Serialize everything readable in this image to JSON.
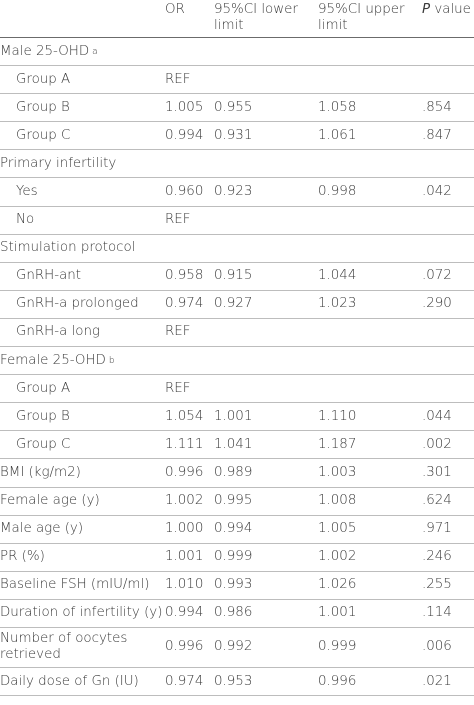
{
  "header": {
    "col_label": "",
    "col_or": "OR",
    "col_lower": "95%CI lower limit",
    "col_upper": "95%CI upper limit",
    "col_p_italic": "P",
    "col_p_rest": " value"
  },
  "rows": [
    {
      "label": "Male 25-OHD",
      "sup": "a",
      "indent": false,
      "or": "",
      "lo": "",
      "up": "",
      "p": ""
    },
    {
      "label": "Group A",
      "indent": true,
      "or": "REF",
      "lo": "",
      "up": "",
      "p": ""
    },
    {
      "label": "Group B",
      "indent": true,
      "or": "1.005",
      "lo": "0.955",
      "up": "1.058",
      "p": ".854"
    },
    {
      "label": "Group C",
      "indent": true,
      "or": "0.994",
      "lo": "0.931",
      "up": "1.061",
      "p": ".847"
    },
    {
      "label": "Primary infertility",
      "indent": false,
      "or": "",
      "lo": "",
      "up": "",
      "p": ""
    },
    {
      "label": "Yes",
      "indent": true,
      "or": "0.960",
      "lo": "0.923",
      "up": "0.998",
      "p": ".042"
    },
    {
      "label": "No",
      "indent": true,
      "or": "REF",
      "lo": "",
      "up": "",
      "p": ""
    },
    {
      "label": "Stimulation protocol",
      "indent": false,
      "or": "",
      "lo": "",
      "up": "",
      "p": ""
    },
    {
      "label": "GnRH-ant",
      "indent": true,
      "or": "0.958",
      "lo": "0.915",
      "up": "1.044",
      "p": ".072"
    },
    {
      "label": "GnRH-a prolonged",
      "indent": true,
      "or": "0.974",
      "lo": "0.927",
      "up": "1.023",
      "p": ".290"
    },
    {
      "label": "GnRH-a long",
      "indent": true,
      "or": "REF",
      "lo": "",
      "up": "",
      "p": ""
    },
    {
      "label": "Female 25-OHD",
      "sup": "b",
      "indent": false,
      "or": "",
      "lo": "",
      "up": "",
      "p": ""
    },
    {
      "label": "Group A",
      "indent": true,
      "or": "REF",
      "lo": "",
      "up": "",
      "p": ""
    },
    {
      "label": "Group B",
      "indent": true,
      "or": "1.054",
      "lo": "1.001",
      "up": "1.110",
      "p": ".044"
    },
    {
      "label": "Group C",
      "indent": true,
      "or": "1.111",
      "lo": "1.041",
      "up": "1.187",
      "p": ".002"
    },
    {
      "label": "BMI (kg/m2)",
      "indent": false,
      "or": "0.996",
      "lo": "0.989",
      "up": "1.003",
      "p": ".301"
    },
    {
      "label": "Female age (y)",
      "indent": false,
      "or": "1.002",
      "lo": "0.995",
      "up": "1.008",
      "p": ".624"
    },
    {
      "label": "Male age (y)",
      "indent": false,
      "or": "1.000",
      "lo": "0.994",
      "up": "1.005",
      "p": ".971"
    },
    {
      "label": "PR (%)",
      "indent": false,
      "or": "1.001",
      "lo": "0.999",
      "up": "1.002",
      "p": ".246"
    },
    {
      "label": "Baseline FSH (mIU/ml)",
      "indent": false,
      "or": "1.010",
      "lo": "0.993",
      "up": "1.026",
      "p": ".255"
    },
    {
      "label": "Duration of infertility (y)",
      "indent": false,
      "or": "0.994",
      "lo": "0.986",
      "up": "1.001",
      "p": ".114"
    },
    {
      "label": "Number of oocytes retrieved",
      "indent": false,
      "tall": true,
      "or": "0.996",
      "lo": "0.992",
      "up": "0.999",
      "p": ".006"
    },
    {
      "label": "Daily dose of Gn (IU)",
      "indent": false,
      "or": "0.974",
      "lo": "0.953",
      "up": "0.996",
      "p": ".021"
    }
  ]
}
